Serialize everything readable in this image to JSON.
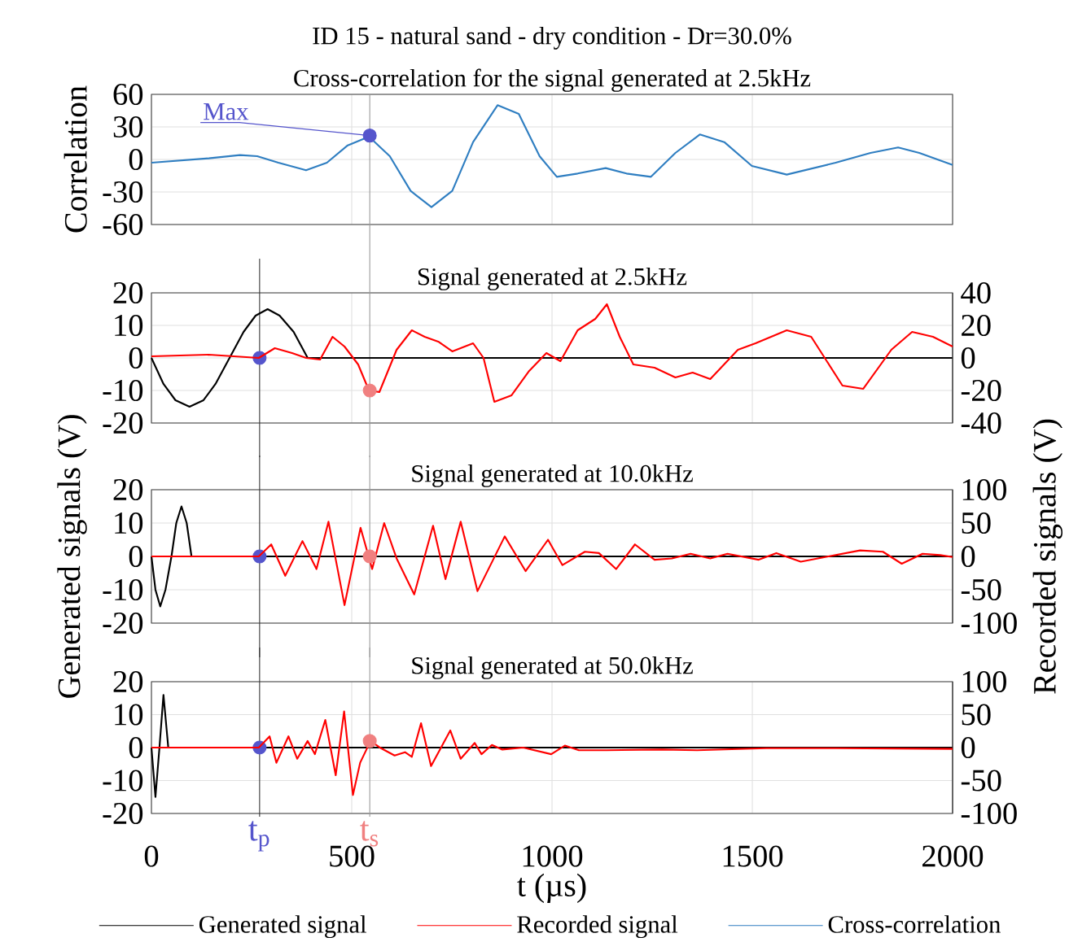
{
  "chart_data": [
    {
      "type": "line",
      "title": "ID 15 - natural sand - dry condition - Dr=30.0%",
      "subtitle": "Cross-correlation for the signal generated at 2.5kHz",
      "ylabel": "Correlation",
      "xlim": [
        0,
        2000
      ],
      "xticks": [
        0,
        500,
        1000,
        1500,
        2000
      ],
      "ylim": [
        -60,
        60
      ],
      "yticks": [
        -60,
        -30,
        0,
        30,
        60
      ],
      "grid": true,
      "tick_labels": "y",
      "annotations": [
        {
          "text": "Max",
          "x": 545,
          "y": 22
        }
      ],
      "ref_lines": [
        {
          "axis": "x",
          "value": 545,
          "color": "#999999"
        }
      ],
      "series": [
        {
          "name": "Cross-correlation",
          "color": "#2f7ec1",
          "x": [
            0,
            143,
            221,
            264,
            317,
            386,
            438,
            490,
            543,
            595,
            647,
            699,
            751,
            803,
            864,
            917,
            969,
            1012,
            1064,
            1134,
            1186,
            1247,
            1308,
            1369,
            1430,
            1499,
            1586,
            1708,
            1795,
            1864,
            1917,
            2000
          ],
          "values": [
            -3,
            1,
            4,
            3,
            -3,
            -10,
            -3,
            13,
            21,
            3,
            -29,
            -44,
            -29,
            16,
            50,
            42,
            3,
            -16,
            -13,
            -8,
            -13,
            -16,
            6,
            23,
            16,
            -6,
            -14,
            -3,
            6,
            11,
            6,
            -5
          ]
        },
        {
          "type": "scatter",
          "color": "#5555cc",
          "x": [
            545
          ],
          "values": [
            22
          ]
        }
      ]
    },
    {
      "type": "line",
      "title": "Signal generated at 2.5kHz",
      "xlim": [
        0,
        2000
      ],
      "xticks": [
        0,
        500,
        1000,
        1500,
        2000
      ],
      "ylim": [
        -20,
        20
      ],
      "yticks": [
        -20,
        -10,
        0,
        10,
        20
      ],
      "y2lim": [
        -40,
        40
      ],
      "y2ticks": [
        -40,
        -20,
        0,
        20,
        40
      ],
      "grid": true,
      "tick_labels": "y",
      "ref_lines": [
        {
          "axis": "x",
          "value": 270,
          "color": "#333333"
        },
        {
          "axis": "x",
          "value": 545,
          "color": "#999999"
        }
      ],
      "series": [
        {
          "color": "#000000",
          "x": [
            0,
            30,
            60,
            95,
            130,
            160,
            195,
            230,
            260,
            290,
            320,
            355,
            390,
            2000
          ],
          "values": [
            0,
            -8,
            -13,
            -15,
            -13,
            -8,
            0,
            8,
            13,
            15,
            13,
            8,
            0,
            0
          ]
        },
        {
          "axis": "y2",
          "color": "#ff0000",
          "x": [
            0,
            143,
            268,
            308,
            351,
            386,
            421,
            452,
            482,
            516,
            543,
            569,
            612,
            650,
            682,
            716,
            751,
            803,
            829,
            856,
            899,
            943,
            986,
            1021,
            1064,
            1108,
            1137,
            1169,
            1203,
            1256,
            1308,
            1351,
            1395,
            1464,
            1508,
            1586,
            1647,
            1725,
            1777,
            1847,
            1899,
            1951,
            2000
          ],
          "values": [
            1,
            2,
            0,
            6,
            3,
            0,
            -1,
            13,
            7,
            -4,
            -20,
            -21,
            5,
            17,
            13,
            10,
            4,
            9,
            0,
            -27,
            -23,
            -8,
            3,
            -2,
            17,
            24,
            33,
            13,
            -4,
            -6,
            -12,
            -9,
            -13,
            5,
            9,
            17,
            13,
            -17,
            -19,
            5,
            16,
            13,
            7
          ]
        },
        {
          "type": "scatter",
          "color": "#5555cc",
          "x": [
            270
          ],
          "values": [
            0
          ]
        },
        {
          "type": "scatter",
          "axis": "y2",
          "color": "#f08080",
          "x": [
            545
          ],
          "values": [
            -20
          ]
        }
      ]
    },
    {
      "type": "line",
      "title": "Signal generated at 10.0kHz",
      "ylabel": "Generated signals (V)",
      "y2label": "Recorded signals (V)",
      "xlim": [
        0,
        2000
      ],
      "xticks": [
        0,
        500,
        1000,
        1500,
        2000
      ],
      "ylim": [
        -20,
        20
      ],
      "yticks": [
        -20,
        -10,
        0,
        10,
        20
      ],
      "y2lim": [
        -100,
        100
      ],
      "y2ticks": [
        -100,
        -50,
        0,
        50,
        100
      ],
      "grid": true,
      "tick_labels": "y",
      "ref_lines": [
        {
          "axis": "x",
          "value": 270,
          "color": "#333333"
        },
        {
          "axis": "x",
          "value": 545,
          "color": "#999999"
        }
      ],
      "series": [
        {
          "color": "#000000",
          "x": [
            0,
            10,
            22,
            35,
            50,
            62,
            75,
            88,
            100,
            2000
          ],
          "values": [
            0,
            -10,
            -15,
            -10,
            0,
            10,
            15,
            10,
            0,
            0
          ]
        },
        {
          "axis": "y2",
          "color": "#ff0000",
          "x": [
            0,
            268,
            299,
            334,
            377,
            412,
            442,
            482,
            522,
            551,
            581,
            612,
            656,
            703,
            734,
            772,
            814,
            882,
            934,
            990,
            1026,
            1082,
            1117,
            1160,
            1207,
            1256,
            1299,
            1346,
            1395,
            1438,
            1516,
            1560,
            1621,
            1690,
            1769,
            1826,
            1873,
            1925,
            1969,
            2000
          ],
          "values": [
            0,
            0,
            18,
            -29,
            23,
            -19,
            52,
            -73,
            43,
            -19,
            50,
            -3,
            -57,
            46,
            -34,
            52,
            -52,
            30,
            -22,
            25,
            -13,
            7,
            5,
            -19,
            18,
            -5,
            -3,
            4,
            -3,
            4,
            -5,
            5,
            -8,
            0,
            9,
            7,
            -11,
            4,
            2,
            -1
          ]
        },
        {
          "type": "scatter",
          "color": "#5555cc",
          "x": [
            270
          ],
          "values": [
            0
          ]
        },
        {
          "type": "scatter",
          "axis": "y2",
          "color": "#f08080",
          "x": [
            545
          ],
          "values": [
            0
          ]
        }
      ]
    },
    {
      "type": "line",
      "title": "Signal generated at 50.0kHz",
      "xlabel": "t (µs)",
      "xlim": [
        0,
        2000
      ],
      "xticks": [
        0,
        500,
        1000,
        1500,
        2000
      ],
      "ylim": [
        -20,
        20
      ],
      "yticks": [
        -20,
        -10,
        0,
        10,
        20
      ],
      "y2lim": [
        -100,
        100
      ],
      "y2ticks": [
        -100,
        -50,
        0,
        50,
        100
      ],
      "grid": true,
      "legend": "bottom",
      "ref_lines": [
        {
          "axis": "x",
          "value": 270,
          "color": "#333333",
          "label": "t$_{p}$"
        },
        {
          "axis": "x",
          "value": 545,
          "color": "#999999",
          "label": "t$_{s}$"
        }
      ],
      "series": [
        {
          "name": "Generated signal",
          "color": "#000000",
          "x": [
            0,
            10,
            20,
            30,
            42,
            2000
          ],
          "values": [
            0,
            -15,
            0,
            16,
            0,
            0
          ]
        },
        {
          "name": "Recorded signal",
          "axis": "y2",
          "color": "#ff0000",
          "x": [
            0,
            268,
            295,
            312,
            342,
            364,
            390,
            408,
            434,
            460,
            481,
            503,
            521,
            547,
            573,
            607,
            633,
            650,
            673,
            698,
            746,
            772,
            807,
            824,
            850,
            876,
            928,
            998,
            1032,
            1067,
            1136,
            1275,
            1362,
            1535,
            1709,
            2000
          ],
          "values": [
            0,
            0,
            17,
            -23,
            17,
            -17,
            10,
            -10,
            42,
            -42,
            55,
            -72,
            -23,
            10,
            -1,
            -12,
            -7,
            -14,
            37,
            -28,
            26,
            -17,
            7,
            -10,
            4,
            -3,
            0,
            -10,
            3,
            -4,
            -4,
            -3,
            -4,
            -1,
            -1,
            -2
          ]
        },
        {
          "type": "scatter",
          "color": "#5555cc",
          "x": [
            270
          ],
          "values": [
            0
          ]
        },
        {
          "type": "scatter",
          "axis": "y2",
          "color": "#f08080",
          "x": [
            545
          ],
          "values": [
            10
          ]
        }
      ]
    }
  ]
}
